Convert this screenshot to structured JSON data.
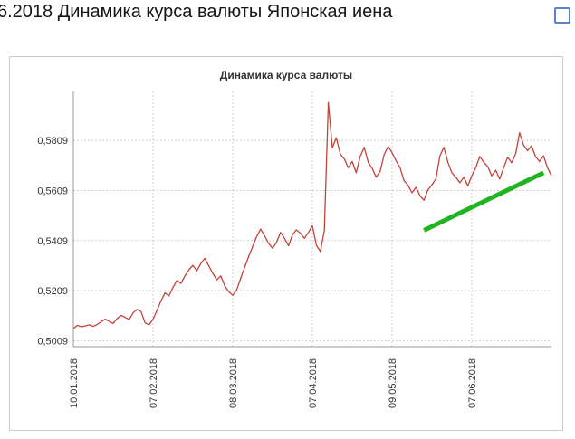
{
  "page": {
    "title": "6.2018 Динамика курса валюты Японская иена"
  },
  "chart_data": {
    "type": "line",
    "title": "Динамика курса валюты",
    "grid": "dotted",
    "legend": "none",
    "line_color": "#c2433a",
    "axis_color": "#9a9a9a",
    "grid_color": "#cfcfcf",
    "label_color": "#333333",
    "ylim": [
      0.4985,
      0.6005
    ],
    "xlim_index": [
      0,
      120
    ],
    "y_ticks": [
      0.5009,
      0.5209,
      0.5409,
      0.5609,
      0.5809
    ],
    "y_tick_labels": [
      "0,5009",
      "0,5209",
      "0,5409",
      "0,5609",
      "0,5809"
    ],
    "x_tick_indices": [
      0,
      20,
      40,
      60,
      80,
      100
    ],
    "x_tick_labels": [
      "10.01.2018",
      "07.02.2018",
      "08.03.2018",
      "07.04.2018",
      "09.05.2018",
      "07.06.2018"
    ],
    "values": [
      0.5058,
      0.507,
      0.5065,
      0.5068,
      0.5072,
      0.5066,
      0.5074,
      0.5085,
      0.5095,
      0.5086,
      0.5078,
      0.5098,
      0.511,
      0.5102,
      0.5093,
      0.512,
      0.5134,
      0.5125,
      0.508,
      0.5072,
      0.5095,
      0.513,
      0.5168,
      0.52,
      0.5188,
      0.5222,
      0.525,
      0.5238,
      0.5268,
      0.5292,
      0.531,
      0.5288,
      0.5318,
      0.5338,
      0.5308,
      0.5278,
      0.5252,
      0.5268,
      0.5228,
      0.5205,
      0.519,
      0.5212,
      0.5258,
      0.5302,
      0.5345,
      0.5385,
      0.5425,
      0.5455,
      0.5428,
      0.5398,
      0.5378,
      0.5402,
      0.5442,
      0.5418,
      0.5388,
      0.5432,
      0.5452,
      0.5438,
      0.5418,
      0.5442,
      0.5468,
      0.539,
      0.5365,
      0.545,
      0.596,
      0.578,
      0.582,
      0.5755,
      0.5735,
      0.57,
      0.5725,
      0.568,
      0.5745,
      0.5782,
      0.5722,
      0.5698,
      0.5662,
      0.5685,
      0.5752,
      0.5785,
      0.576,
      0.5728,
      0.57,
      0.5648,
      0.563,
      0.56,
      0.5622,
      0.5588,
      0.557,
      0.5612,
      0.5632,
      0.5655,
      0.5748,
      0.5782,
      0.5722,
      0.568,
      0.5662,
      0.564,
      0.5662,
      0.5628,
      0.5668,
      0.57,
      0.5745,
      0.5722,
      0.5705,
      0.5668,
      0.569,
      0.5655,
      0.57,
      0.5742,
      0.572,
      0.5755,
      0.584,
      0.579,
      0.5768,
      0.5788,
      0.5745,
      0.5725,
      0.5748,
      0.57,
      0.5668
    ],
    "trend_line": {
      "from_index": 88,
      "from_value": 0.545,
      "to_index": 118,
      "to_value": 0.568,
      "color": "#21b421",
      "width": 5
    }
  }
}
